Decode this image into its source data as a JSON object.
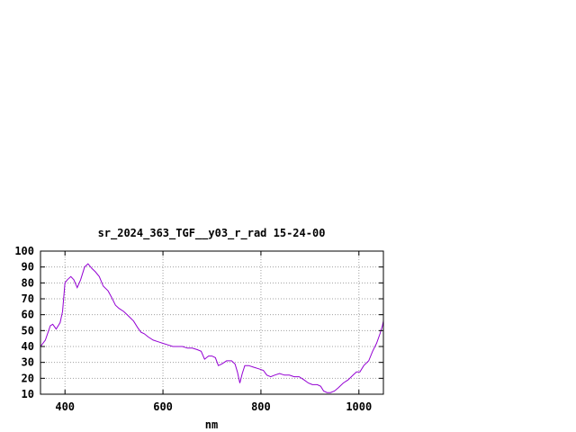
{
  "chart_data": {
    "type": "line",
    "title": "sr_2024_363_TGF__y03_r_rad 15-24-00",
    "xlabel": "nm",
    "ylabel": "",
    "xlim": [
      350,
      1050
    ],
    "ylim": [
      10,
      100
    ],
    "x_ticks": [
      400,
      600,
      800,
      1000
    ],
    "y_ticks": [
      10,
      20,
      30,
      40,
      50,
      60,
      70,
      80,
      90,
      100
    ],
    "grid": true,
    "series": [
      {
        "color": "#9400d3",
        "points": [
          [
            350,
            40
          ],
          [
            360,
            44
          ],
          [
            370,
            53
          ],
          [
            375,
            54
          ],
          [
            382,
            51
          ],
          [
            390,
            55
          ],
          [
            395,
            62
          ],
          [
            400,
            80
          ],
          [
            405,
            82
          ],
          [
            412,
            84
          ],
          [
            418,
            82
          ],
          [
            425,
            77
          ],
          [
            432,
            82
          ],
          [
            440,
            90
          ],
          [
            447,
            92
          ],
          [
            455,
            89
          ],
          [
            462,
            87
          ],
          [
            470,
            84
          ],
          [
            478,
            78
          ],
          [
            488,
            75
          ],
          [
            495,
            71
          ],
          [
            503,
            66
          ],
          [
            510,
            64
          ],
          [
            520,
            62
          ],
          [
            530,
            59
          ],
          [
            540,
            56
          ],
          [
            548,
            52
          ],
          [
            555,
            49
          ],
          [
            562,
            48
          ],
          [
            570,
            46
          ],
          [
            580,
            44
          ],
          [
            590,
            43
          ],
          [
            600,
            42
          ],
          [
            610,
            41
          ],
          [
            620,
            40
          ],
          [
            630,
            40
          ],
          [
            640,
            40
          ],
          [
            650,
            39
          ],
          [
            660,
            39
          ],
          [
            670,
            38
          ],
          [
            678,
            37
          ],
          [
            685,
            32
          ],
          [
            693,
            34
          ],
          [
            700,
            34
          ],
          [
            707,
            33
          ],
          [
            713,
            28
          ],
          [
            720,
            29
          ],
          [
            730,
            31
          ],
          [
            740,
            31
          ],
          [
            747,
            29
          ],
          [
            752,
            24
          ],
          [
            757,
            17
          ],
          [
            762,
            23
          ],
          [
            767,
            28
          ],
          [
            775,
            28
          ],
          [
            785,
            27
          ],
          [
            795,
            26
          ],
          [
            805,
            25
          ],
          [
            812,
            22
          ],
          [
            820,
            21
          ],
          [
            828,
            22
          ],
          [
            838,
            23
          ],
          [
            848,
            22
          ],
          [
            858,
            22
          ],
          [
            868,
            21
          ],
          [
            878,
            21
          ],
          [
            888,
            19
          ],
          [
            897,
            17
          ],
          [
            905,
            16
          ],
          [
            915,
            16
          ],
          [
            922,
            15
          ],
          [
            928,
            12
          ],
          [
            935,
            11
          ],
          [
            942,
            11
          ],
          [
            950,
            12
          ],
          [
            958,
            14
          ],
          [
            968,
            17
          ],
          [
            978,
            19
          ],
          [
            988,
            22
          ],
          [
            995,
            24
          ],
          [
            1002,
            24
          ],
          [
            1010,
            28
          ],
          [
            1020,
            31
          ],
          [
            1028,
            37
          ],
          [
            1036,
            42
          ],
          [
            1043,
            48
          ],
          [
            1048,
            53
          ],
          [
            1050,
            56
          ]
        ]
      }
    ]
  }
}
